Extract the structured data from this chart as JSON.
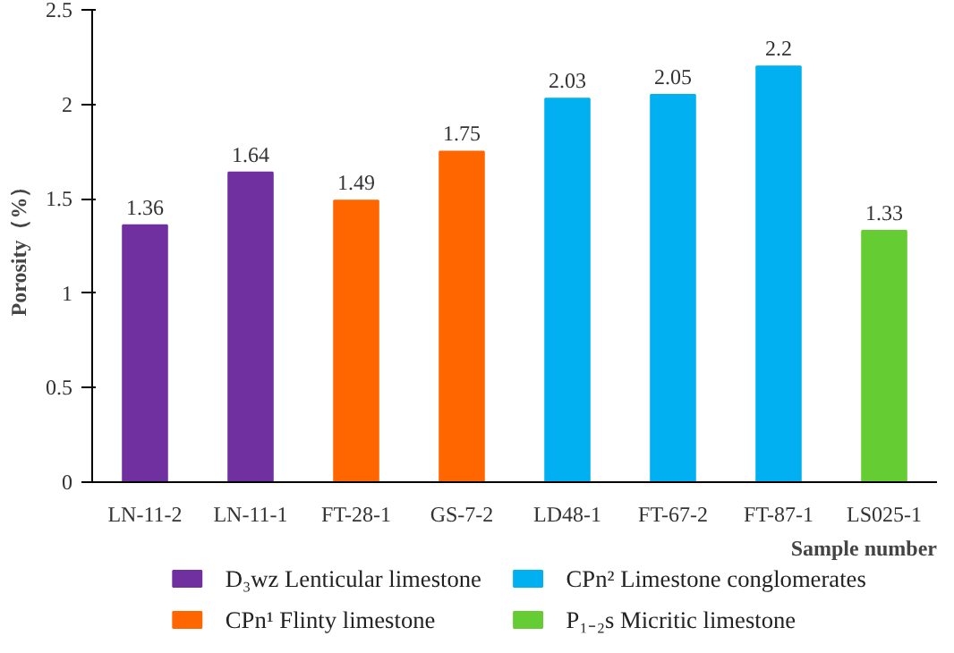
{
  "chart_data": {
    "type": "bar",
    "xlabel": "Sample number",
    "ylabel": "Porosity（%）",
    "categories": [
      "LN-11-2",
      "LN-11-1",
      "FT-28-1",
      "GS-7-2",
      "LD48-1",
      "FT-67-2",
      "FT-87-1",
      "LS025-1"
    ],
    "series": [
      {
        "name": "D₃wz Lenticular limestone",
        "color": "#7030a0",
        "values": [
          1.36,
          1.64,
          null,
          null,
          null,
          null,
          null,
          null
        ]
      },
      {
        "name": "CPn¹ Flinty limestone",
        "color": "#ff6600",
        "values": [
          null,
          null,
          1.49,
          1.75,
          null,
          null,
          null,
          null
        ]
      },
      {
        "name": "CPn² Limestone conglomerates",
        "color": "#00b0f0",
        "values": [
          null,
          null,
          null,
          null,
          2.03,
          2.05,
          2.2,
          null
        ]
      },
      {
        "name": "P₁₋₂s Micritic limestone",
        "color": "#66cc33",
        "values": [
          null,
          null,
          null,
          null,
          null,
          null,
          null,
          1.33
        ]
      }
    ],
    "ylim": [
      0,
      2.5
    ],
    "yticks": [
      0,
      0.5,
      1,
      1.5,
      2,
      2.5
    ],
    "data_labels": true,
    "grid": false,
    "legend": "bottom"
  }
}
